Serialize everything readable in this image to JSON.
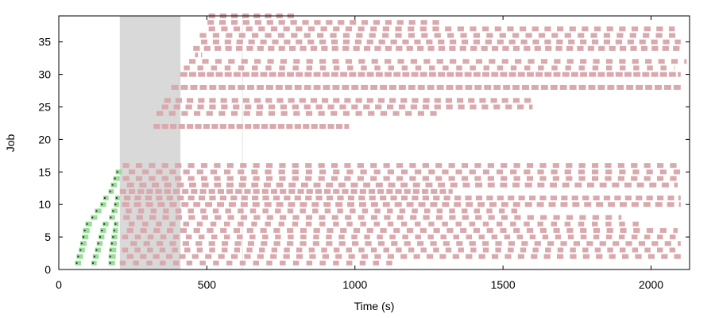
{
  "chart_data": {
    "type": "gantt",
    "xlabel": "Time (s)",
    "ylabel": "Job",
    "xlim": [
      0,
      2130
    ],
    "ylim": [
      0,
      39
    ],
    "x_ticks": [
      0,
      500,
      1000,
      1500,
      2000
    ],
    "y_ticks": [
      0,
      5,
      10,
      15,
      20,
      25,
      30,
      35
    ],
    "grid": false,
    "legend": "none",
    "colors": {
      "startup": "#99dd99",
      "startup_marker": "#223322",
      "task": "#d9a9ad",
      "shaded_window": "#d9d9d9",
      "marker_line": "#e4e4e4"
    },
    "shaded_window": {
      "x": [
        206,
        411
      ]
    },
    "marker_line": {
      "x": 620
    },
    "startup_blocks": [
      {
        "job": 1,
        "x": [
          55,
          75
        ]
      },
      {
        "job": 1,
        "x": [
          110,
          128
        ]
      },
      {
        "job": 1,
        "x": [
          168,
          190
        ]
      },
      {
        "job": 2,
        "x": [
          60,
          82
        ]
      },
      {
        "job": 2,
        "x": [
          115,
          135
        ]
      },
      {
        "job": 2,
        "x": [
          168,
          192
        ]
      },
      {
        "job": 3,
        "x": [
          68,
          88
        ]
      },
      {
        "job": 3,
        "x": [
          122,
          142
        ]
      },
      {
        "job": 3,
        "x": [
          170,
          194
        ]
      },
      {
        "job": 4,
        "x": [
          72,
          94
        ]
      },
      {
        "job": 4,
        "x": [
          128,
          148
        ]
      },
      {
        "job": 4,
        "x": [
          174,
          196
        ]
      },
      {
        "job": 5,
        "x": [
          78,
          100
        ]
      },
      {
        "job": 5,
        "x": [
          134,
          154
        ]
      },
      {
        "job": 5,
        "x": [
          178,
          198
        ]
      },
      {
        "job": 6,
        "x": [
          82,
          104
        ]
      },
      {
        "job": 6,
        "x": [
          140,
          160
        ]
      },
      {
        "job": 6,
        "x": [
          182,
          200
        ]
      },
      {
        "job": 7,
        "x": [
          90,
          112
        ]
      },
      {
        "job": 7,
        "x": [
          148,
          168
        ]
      },
      {
        "job": 7,
        "x": [
          186,
          202
        ]
      },
      {
        "job": 8,
        "x": [
          108,
          130
        ]
      },
      {
        "job": 8,
        "x": [
          170,
          190
        ]
      },
      {
        "job": 9,
        "x": [
          122,
          144
        ]
      },
      {
        "job": 9,
        "x": [
          178,
          198
        ]
      },
      {
        "job": 10,
        "x": [
          140,
          160
        ]
      },
      {
        "job": 10,
        "x": [
          186,
          204
        ]
      },
      {
        "job": 11,
        "x": [
          150,
          168
        ]
      },
      {
        "job": 11,
        "x": [
          190,
          206
        ]
      },
      {
        "job": 12,
        "x": [
          168,
          186
        ]
      },
      {
        "job": 13,
        "x": [
          176,
          196
        ]
      },
      {
        "job": 14,
        "x": [
          184,
          206
        ]
      },
      {
        "job": 15,
        "x": [
          192,
          214
        ]
      }
    ],
    "task_rows": [
      {
        "job": 1,
        "start": 206,
        "end": 1130,
        "bar": 20,
        "period": 45,
        "offset": 0
      },
      {
        "job": 2,
        "start": 214,
        "end": 2100,
        "bar": 22,
        "period": 44,
        "offset": 16
      },
      {
        "job": 3,
        "start": 206,
        "end": 2100,
        "bar": 20,
        "period": 42,
        "offset": 8
      },
      {
        "job": 4,
        "start": 220,
        "end": 2100,
        "bar": 22,
        "period": 44,
        "offset": 22
      },
      {
        "job": 5,
        "start": 210,
        "end": 2100,
        "bar": 20,
        "period": 43,
        "offset": 4
      },
      {
        "job": 6,
        "start": 218,
        "end": 2090,
        "bar": 22,
        "period": 45,
        "offset": 12
      },
      {
        "job": 7,
        "start": 206,
        "end": 1960,
        "bar": 20,
        "period": 46,
        "offset": 30
      },
      {
        "job": 8,
        "start": 212,
        "end": 1900,
        "bar": 22,
        "period": 44,
        "offset": 6
      },
      {
        "job": 9,
        "start": 208,
        "end": 1550,
        "bar": 20,
        "period": 42,
        "offset": 18
      },
      {
        "job": 10,
        "start": 214,
        "end": 2100,
        "bar": 24,
        "period": 40,
        "offset": 0
      },
      {
        "job": 11,
        "start": 210,
        "end": 2100,
        "bar": 22,
        "period": 36,
        "offset": 10
      },
      {
        "job": 12,
        "start": 206,
        "end": 1330,
        "bar": 22,
        "period": 30,
        "offset": 0
      },
      {
        "job": 13,
        "start": 216,
        "end": 2090,
        "bar": 24,
        "period": 42,
        "offset": 14
      },
      {
        "job": 14,
        "start": 210,
        "end": 2090,
        "bar": 22,
        "period": 44,
        "offset": 6
      },
      {
        "job": 15,
        "start": 216,
        "end": 2100,
        "bar": 22,
        "period": 46,
        "offset": 20
      },
      {
        "job": 16,
        "start": 216,
        "end": 2090,
        "bar": 22,
        "period": 44,
        "offset": 0
      },
      {
        "job": 22,
        "start": 320,
        "end": 980,
        "bar": 22,
        "period": 28,
        "offset": 0
      },
      {
        "job": 24,
        "start": 330,
        "end": 1290,
        "bar": 22,
        "period": 42,
        "offset": 0
      },
      {
        "job": 25,
        "start": 340,
        "end": 1600,
        "bar": 22,
        "period": 40,
        "offset": 8
      },
      {
        "job": 26,
        "start": 356,
        "end": 1600,
        "bar": 22,
        "period": 38,
        "offset": 0
      },
      {
        "job": 28,
        "start": 380,
        "end": 2100,
        "bar": 24,
        "period": 32,
        "offset": 0
      },
      {
        "job": 30,
        "start": 410,
        "end": 2100,
        "bar": 24,
        "period": 30,
        "offset": 0
      },
      {
        "job": 31,
        "start": 412,
        "end": 2080,
        "bar": 20,
        "period": 46,
        "offset": 10
      },
      {
        "job": 32,
        "start": 420,
        "end": 2120,
        "bar": 22,
        "period": 44,
        "offset": 20
      },
      {
        "job": 33,
        "start": 460,
        "end": 484,
        "bar": 10,
        "period": 20,
        "offset": 0
      },
      {
        "job": 34,
        "start": 450,
        "end": 2110,
        "bar": 22,
        "period": 36,
        "offset": 4
      },
      {
        "job": 35,
        "start": 466,
        "end": 2100,
        "bar": 22,
        "period": 40,
        "offset": 14
      },
      {
        "job": 36,
        "start": 476,
        "end": 2100,
        "bar": 22,
        "period": 44,
        "offset": 0
      },
      {
        "job": 37,
        "start": 488,
        "end": 2080,
        "bar": 22,
        "period": 42,
        "offset": 18
      },
      {
        "job": 38,
        "start": 496,
        "end": 1300,
        "bar": 22,
        "period": 40,
        "offset": 6
      },
      {
        "job": 39,
        "start": 506,
        "end": 800,
        "bar": 22,
        "period": 38,
        "offset": 0
      }
    ]
  }
}
